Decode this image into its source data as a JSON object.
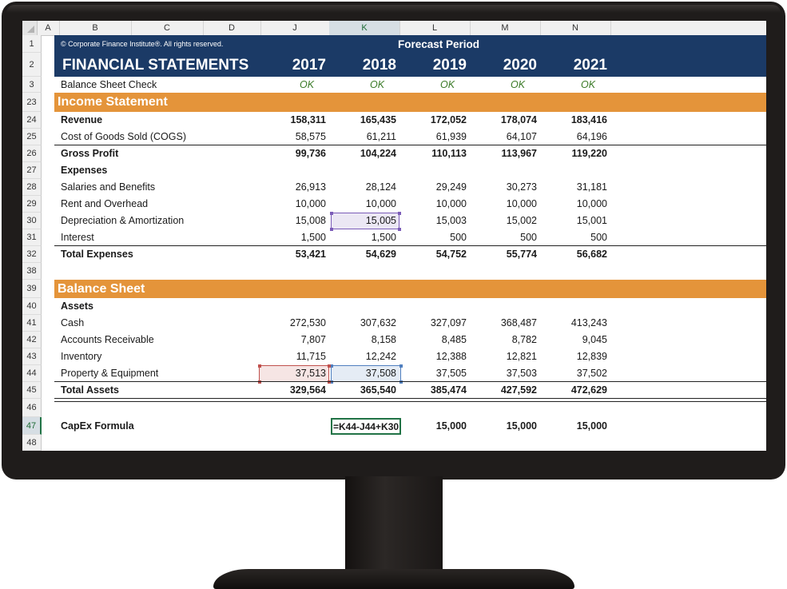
{
  "columns": [
    "A",
    "B",
    "C",
    "D",
    "J",
    "K",
    "L",
    "M",
    "N"
  ],
  "copyright": "© Corporate Finance Institute®. All rights reserved.",
  "forecast_label": "Forecast Period",
  "title": "FINANCIAL STATEMENTS",
  "years": [
    "2017",
    "2018",
    "2019",
    "2020",
    "2021"
  ],
  "check": {
    "label": "Balance Sheet Check",
    "values": [
      "OK",
      "OK",
      "OK",
      "OK",
      "OK"
    ]
  },
  "income": {
    "header": "Income Statement",
    "revenue": {
      "label": "Revenue",
      "values": [
        "158,311",
        "165,435",
        "172,052",
        "178,074",
        "183,416"
      ]
    },
    "cogs": {
      "label": "Cost of Goods Sold (COGS)",
      "values": [
        "58,575",
        "61,211",
        "61,939",
        "64,107",
        "64,196"
      ]
    },
    "gross": {
      "label": "Gross Profit",
      "values": [
        "99,736",
        "104,224",
        "110,113",
        "113,967",
        "119,220"
      ]
    },
    "expenses_label": "Expenses",
    "salaries": {
      "label": "Salaries and Benefits",
      "values": [
        "26,913",
        "28,124",
        "29,249",
        "30,273",
        "31,181"
      ]
    },
    "rent": {
      "label": "Rent and Overhead",
      "values": [
        "10,000",
        "10,000",
        "10,000",
        "10,000",
        "10,000"
      ]
    },
    "dep": {
      "label": "Depreciation & Amortization",
      "values": [
        "15,008",
        "15,005",
        "15,003",
        "15,002",
        "15,001"
      ]
    },
    "interest": {
      "label": "Interest",
      "values": [
        "1,500",
        "1,500",
        "500",
        "500",
        "500"
      ]
    },
    "total": {
      "label": "Total Expenses",
      "values": [
        "53,421",
        "54,629",
        "54,752",
        "55,774",
        "56,682"
      ]
    }
  },
  "balance": {
    "header": "Balance Sheet",
    "assets_label": "Assets",
    "cash": {
      "label": "Cash",
      "values": [
        "272,530",
        "307,632",
        "327,097",
        "368,487",
        "413,243"
      ]
    },
    "ar": {
      "label": "Accounts Receivable",
      "values": [
        "7,807",
        "8,158",
        "8,485",
        "8,782",
        "9,045"
      ]
    },
    "inv": {
      "label": "Inventory",
      "values": [
        "11,715",
        "12,242",
        "12,388",
        "12,821",
        "12,839"
      ]
    },
    "ppe": {
      "label": "Property & Equipment",
      "values": [
        "37,513",
        "37,508",
        "37,505",
        "37,503",
        "37,502"
      ]
    },
    "total": {
      "label": "Total Assets",
      "values": [
        "329,564",
        "365,540",
        "385,474",
        "427,592",
        "472,629"
      ]
    }
  },
  "capex": {
    "label": "CapEx Formula",
    "formula": "=K44-J44+K30",
    "values": [
      "15,000",
      "15,000",
      "15,000"
    ]
  },
  "row_numbers": [
    "1",
    "2",
    "3",
    "23",
    "24",
    "25",
    "26",
    "27",
    "28",
    "29",
    "30",
    "31",
    "32",
    "38",
    "39",
    "40",
    "41",
    "42",
    "43",
    "44",
    "45",
    "46",
    "47",
    "48"
  ],
  "colors": {
    "navy": "#1b3a66",
    "orange": "#e4943a",
    "ok_green": "#3a7a27",
    "purple_ref": "#7b5cb8",
    "red_ref": "#c0504d",
    "blue_ref": "#4f7fbf",
    "active_green": "#217346"
  }
}
